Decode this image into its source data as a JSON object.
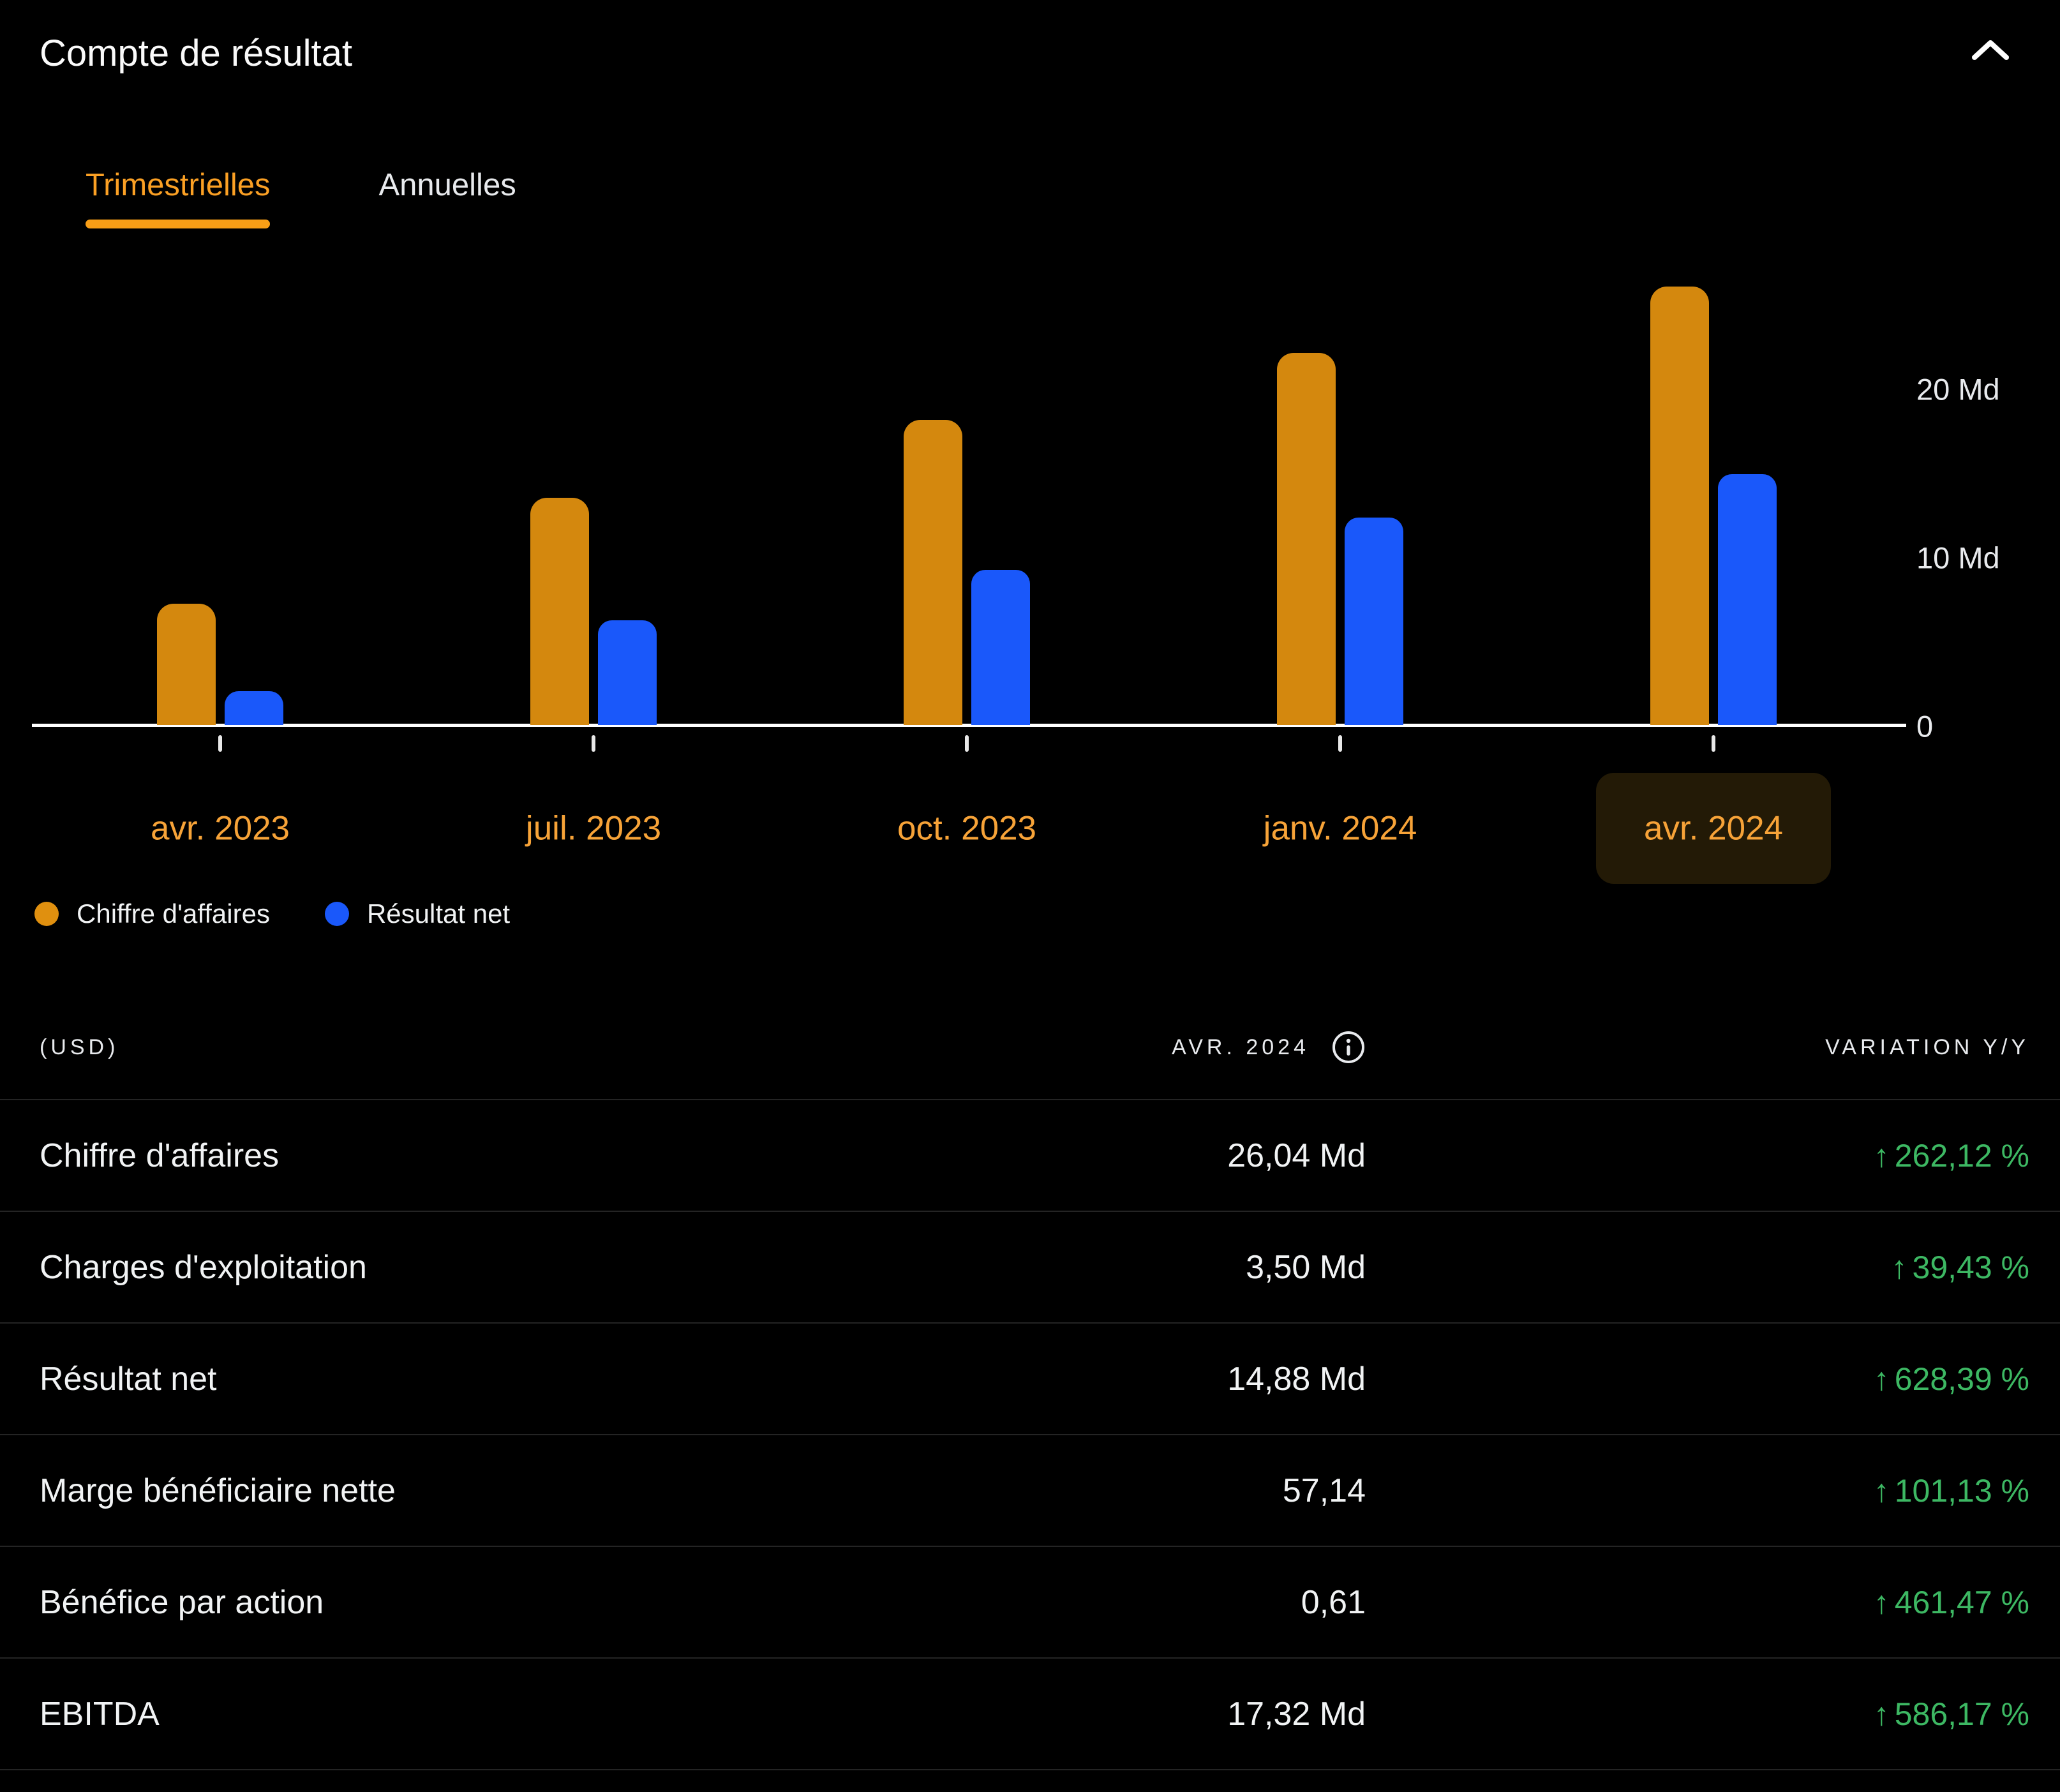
{
  "header": {
    "title": "Compte de résultat",
    "collapse_icon": "chevron-up-icon"
  },
  "tabs": [
    {
      "label": "Trimestrielles",
      "active": true
    },
    {
      "label": "Annuelles",
      "active": false
    }
  ],
  "chart_data": {
    "type": "bar",
    "title": "Compte de résultat — données trimestrielles",
    "categories": [
      "avr. 2023",
      "juil. 2023",
      "oct. 2023",
      "janv. 2024",
      "avr. 2024"
    ],
    "selected_category": "avr. 2024",
    "series": [
      {
        "name": "Chiffre d'affaires",
        "color": "#d4880e",
        "values_md": [
          7.2,
          13.5,
          18.1,
          22.1,
          26.04
        ]
      },
      {
        "name": "Résultat net",
        "color": "#1a58fa",
        "values_md": [
          2.0,
          6.2,
          9.2,
          12.3,
          14.88
        ]
      }
    ],
    "unit": "Md",
    "y_ticks": [
      {
        "label": "20 Md",
        "value": 20
      },
      {
        "label": "10 Md",
        "value": 10
      },
      {
        "label": "0",
        "value": 0
      }
    ],
    "ylim_md": [
      0,
      27
    ],
    "grid": false,
    "legend_position": "bottom-left"
  },
  "legend": [
    {
      "label": "Chiffre d'affaires",
      "color": "#e0900f"
    },
    {
      "label": "Résultat net",
      "color": "#1a58fa"
    }
  ],
  "table": {
    "currency_note": "(USD)",
    "period_header": "AVR. 2024",
    "variation_header": "VARIATION Y/Y",
    "rows": [
      {
        "label": "Chiffre d'affaires",
        "value": "26,04 Md",
        "variation": "262,12 %",
        "direction": "up"
      },
      {
        "label": "Charges d'exploitation",
        "value": "3,50 Md",
        "variation": "39,43 %",
        "direction": "up"
      },
      {
        "label": "Résultat net",
        "value": "14,88 Md",
        "variation": "628,39 %",
        "direction": "up"
      },
      {
        "label": "Marge bénéficiaire nette",
        "value": "57,14",
        "variation": "101,13 %",
        "direction": "up"
      },
      {
        "label": "Bénéfice par action",
        "value": "0,61",
        "variation": "461,47 %",
        "direction": "up"
      },
      {
        "label": "EBITDA",
        "value": "17,32 Md",
        "variation": "586,17 %",
        "direction": "up"
      }
    ]
  },
  "icons": {
    "up_arrow": "↑"
  },
  "colors": {
    "background": "#000000",
    "accent_orange": "#fba024",
    "x_label_orange": "#f7a338",
    "bar_orange": "#d4880e",
    "bar_blue": "#1a58fa",
    "positive_green": "#3db863",
    "selected_label_bg": "#231a06",
    "divider": "rgba(255,255,255,0.14)"
  }
}
